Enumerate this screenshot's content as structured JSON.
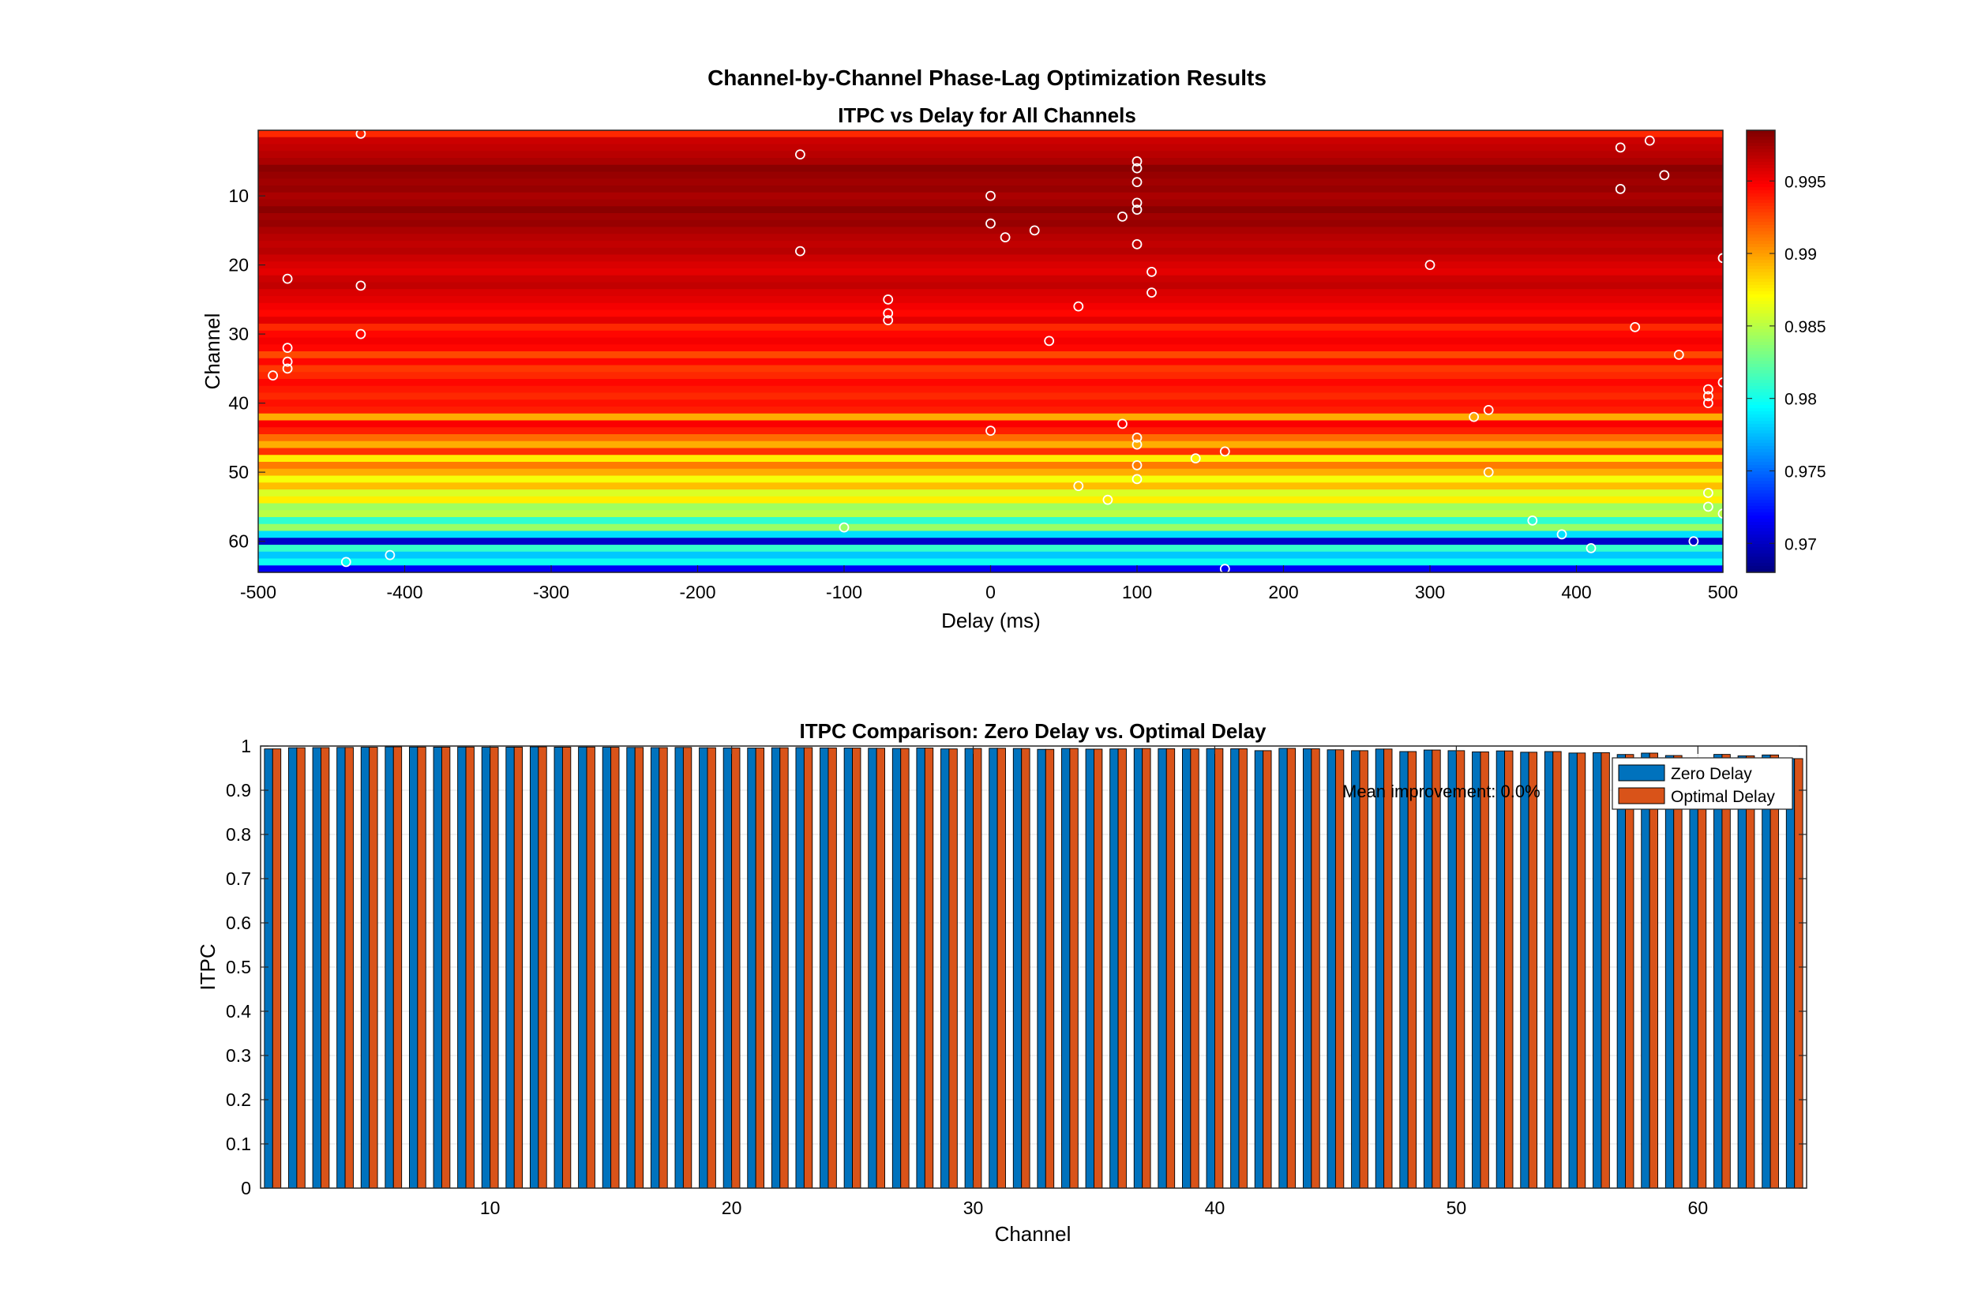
{
  "figure_title": "Channel-by-Channel Phase-Lag Optimization Results",
  "chart_data": [
    {
      "type": "heatmap",
      "title": "ITPC vs Delay for All Channels",
      "xlabel": "Delay (ms)",
      "ylabel": "Channel",
      "xlim": [
        -500,
        500
      ],
      "ylim": [
        1,
        64
      ],
      "y_reversed": true,
      "xticks": [
        -500,
        -400,
        -300,
        -200,
        -100,
        0,
        100,
        200,
        300,
        400,
        500
      ],
      "yticks": [
        10,
        20,
        30,
        40,
        50,
        60
      ],
      "colormap": "jet",
      "colorbar": {
        "clim": [
          0.968,
          0.9985
        ],
        "ticks": [
          0.97,
          0.975,
          0.98,
          0.985,
          0.99,
          0.995
        ]
      },
      "row_itpc": [
        0.9935,
        0.9962,
        0.9965,
        0.9968,
        0.9972,
        0.9982,
        0.9978,
        0.9975,
        0.9978,
        0.9972,
        0.9975,
        0.9982,
        0.9975,
        0.9978,
        0.9972,
        0.9968,
        0.9965,
        0.9968,
        0.9962,
        0.9958,
        0.9955,
        0.9962,
        0.9965,
        0.9958,
        0.9955,
        0.995,
        0.9945,
        0.9955,
        0.9935,
        0.9945,
        0.995,
        0.9945,
        0.9925,
        0.9945,
        0.993,
        0.9935,
        0.9945,
        0.994,
        0.9935,
        0.9942,
        0.9938,
        0.9895,
        0.9948,
        0.9938,
        0.9915,
        0.9895,
        0.9932,
        0.9875,
        0.991,
        0.9895,
        0.9868,
        0.989,
        0.986,
        0.9875,
        0.9842,
        0.985,
        0.9808,
        0.984,
        0.9785,
        0.9702,
        0.981,
        0.9778,
        0.9798,
        0.9715
      ],
      "optimal_delay_points": [
        {
          "channel": 1,
          "delay": -430
        },
        {
          "channel": 2,
          "delay": 450
        },
        {
          "channel": 3,
          "delay": 430
        },
        {
          "channel": 4,
          "delay": -130
        },
        {
          "channel": 5,
          "delay": 100
        },
        {
          "channel": 6,
          "delay": 100
        },
        {
          "channel": 7,
          "delay": 460
        },
        {
          "channel": 8,
          "delay": 100
        },
        {
          "channel": 9,
          "delay": 430
        },
        {
          "channel": 10,
          "delay": 0
        },
        {
          "channel": 11,
          "delay": 100
        },
        {
          "channel": 12,
          "delay": 100
        },
        {
          "channel": 13,
          "delay": 90
        },
        {
          "channel": 14,
          "delay": 0
        },
        {
          "channel": 15,
          "delay": 30
        },
        {
          "channel": 16,
          "delay": 10
        },
        {
          "channel": 17,
          "delay": 100
        },
        {
          "channel": 18,
          "delay": -130
        },
        {
          "channel": 19,
          "delay": 500
        },
        {
          "channel": 20,
          "delay": 300
        },
        {
          "channel": 21,
          "delay": 110
        },
        {
          "channel": 22,
          "delay": -480
        },
        {
          "channel": 23,
          "delay": -430
        },
        {
          "channel": 24,
          "delay": 110
        },
        {
          "channel": 25,
          "delay": -70
        },
        {
          "channel": 26,
          "delay": 60
        },
        {
          "channel": 27,
          "delay": -70
        },
        {
          "channel": 28,
          "delay": -70
        },
        {
          "channel": 29,
          "delay": 440
        },
        {
          "channel": 30,
          "delay": -430
        },
        {
          "channel": 31,
          "delay": 40
        },
        {
          "channel": 32,
          "delay": -480
        },
        {
          "channel": 33,
          "delay": 470
        },
        {
          "channel": 34,
          "delay": -480
        },
        {
          "channel": 35,
          "delay": -480
        },
        {
          "channel": 36,
          "delay": -490
        },
        {
          "channel": 37,
          "delay": 500
        },
        {
          "channel": 38,
          "delay": 490
        },
        {
          "channel": 39,
          "delay": 490
        },
        {
          "channel": 40,
          "delay": 490
        },
        {
          "channel": 41,
          "delay": 340
        },
        {
          "channel": 42,
          "delay": 330
        },
        {
          "channel": 43,
          "delay": 90
        },
        {
          "channel": 44,
          "delay": 0
        },
        {
          "channel": 45,
          "delay": 100
        },
        {
          "channel": 46,
          "delay": 100
        },
        {
          "channel": 47,
          "delay": 160
        },
        {
          "channel": 48,
          "delay": 140
        },
        {
          "channel": 49,
          "delay": 100
        },
        {
          "channel": 50,
          "delay": 340
        },
        {
          "channel": 51,
          "delay": 100
        },
        {
          "channel": 52,
          "delay": 60
        },
        {
          "channel": 53,
          "delay": 490
        },
        {
          "channel": 54,
          "delay": 80
        },
        {
          "channel": 55,
          "delay": 490
        },
        {
          "channel": 56,
          "delay": 500
        },
        {
          "channel": 57,
          "delay": 370
        },
        {
          "channel": 58,
          "delay": -100
        },
        {
          "channel": 59,
          "delay": 390
        },
        {
          "channel": 60,
          "delay": 480
        },
        {
          "channel": 61,
          "delay": 410
        },
        {
          "channel": 62,
          "delay": -410
        },
        {
          "channel": 63,
          "delay": -440
        },
        {
          "channel": 64,
          "delay": 160
        }
      ]
    },
    {
      "type": "bar",
      "title": "ITPC Comparison: Zero Delay vs. Optimal Delay",
      "xlabel": "Channel",
      "ylabel": "ITPC",
      "xlim": [
        0.5,
        64.5
      ],
      "ylim": [
        0,
        1
      ],
      "xticks": [
        10,
        20,
        30,
        40,
        50,
        60
      ],
      "yticks": [
        0,
        0.1,
        0.2,
        0.3,
        0.4,
        0.5,
        0.6,
        0.7,
        0.8,
        0.9,
        1
      ],
      "grid": true,
      "legend_position": "top-right",
      "annotation": "Mean improvement: 0.0%",
      "series": [
        {
          "name": "Zero Delay",
          "color": "#0072BD",
          "values_from": "row_itpc"
        },
        {
          "name": "Optimal Delay",
          "color": "#D95319",
          "values_from": "row_itpc"
        }
      ]
    }
  ]
}
